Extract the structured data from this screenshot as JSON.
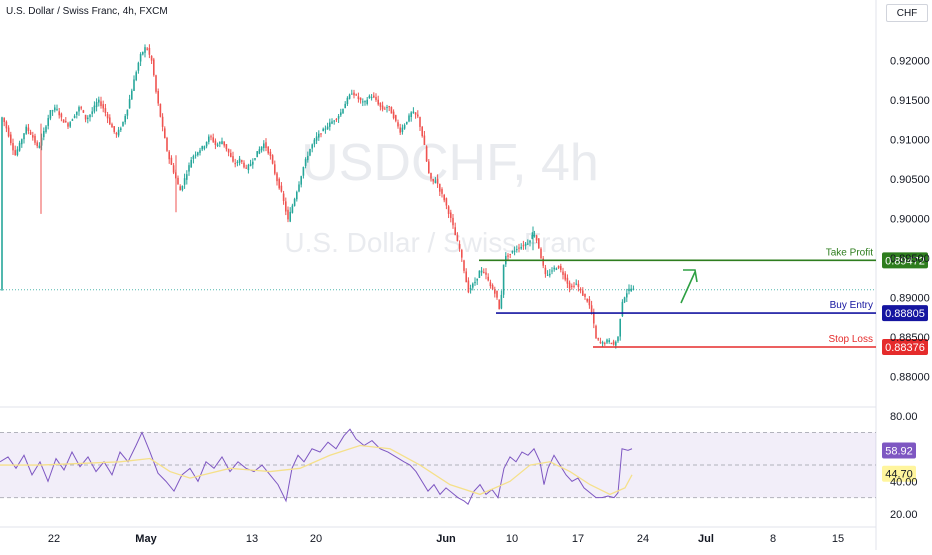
{
  "header": {
    "symbol_title": "U.S. Dollar / Swiss Franc, 4h, FXCM",
    "currency_button": "CHF"
  },
  "watermark": {
    "ticker": "USDCHF, 4h",
    "name": "U.S. Dollar / Swiss Franc"
  },
  "colors": {
    "bull": "#26a69a",
    "bear": "#ef5350",
    "take_profit": "#2e7d1e",
    "buy_entry": "#1515a0",
    "stop_loss": "#e52b2b",
    "rsi_line": "#7e57c2",
    "rsi_ma": "#f5e08a",
    "arrow": "#2ea043"
  },
  "chart_data": [
    {
      "type": "candlestick",
      "title": "U.S. Dollar / Swiss Franc, 4h, FXCM",
      "x_ticks": [
        "22",
        "May",
        "13",
        "20",
        "Jun",
        "10",
        "17",
        "24",
        "Jul",
        "8",
        "15"
      ],
      "y_ticks": [
        "0.92000",
        "0.91500",
        "0.91000",
        "0.90500",
        "0.90000",
        "0.89500",
        "0.89000",
        "0.88500",
        "0.88000"
      ],
      "ylim": [
        0.8763,
        0.9246
      ],
      "price_path": [
        [
          0,
          0.9133
        ],
        [
          5,
          0.912
        ],
        [
          10,
          0.91
        ],
        [
          15,
          0.908
        ],
        [
          20,
          0.9095
        ],
        [
          26,
          0.9115
        ],
        [
          32,
          0.9105
        ],
        [
          38,
          0.9088
        ],
        [
          44,
          0.911
        ],
        [
          50,
          0.9135
        ],
        [
          56,
          0.914
        ],
        [
          62,
          0.9125
        ],
        [
          68,
          0.9118
        ],
        [
          74,
          0.913
        ],
        [
          80,
          0.9142
        ],
        [
          86,
          0.9125
        ],
        [
          92,
          0.9135
        ],
        [
          98,
          0.915
        ],
        [
          104,
          0.9138
        ],
        [
          110,
          0.912
        ],
        [
          116,
          0.9105
        ],
        [
          122,
          0.9118
        ],
        [
          128,
          0.9142
        ],
        [
          134,
          0.9175
        ],
        [
          140,
          0.9205
        ],
        [
          146,
          0.9218
        ],
        [
          152,
          0.9198
        ],
        [
          156,
          0.916
        ],
        [
          162,
          0.9118
        ],
        [
          168,
          0.908
        ],
        [
          174,
          0.9058
        ],
        [
          180,
          0.9035
        ],
        [
          186,
          0.9055
        ],
        [
          192,
          0.9078
        ],
        [
          198,
          0.9085
        ],
        [
          204,
          0.9092
        ],
        [
          210,
          0.9105
        ],
        [
          216,
          0.9092
        ],
        [
          222,
          0.9098
        ],
        [
          228,
          0.9085
        ],
        [
          234,
          0.9068
        ],
        [
          240,
          0.9075
        ],
        [
          246,
          0.9062
        ],
        [
          252,
          0.9072
        ],
        [
          258,
          0.9085
        ],
        [
          264,
          0.9095
        ],
        [
          270,
          0.908
        ],
        [
          276,
          0.9052
        ],
        [
          282,
          0.903
        ],
        [
          288,
          0.8998
        ],
        [
          292,
          0.9015
        ],
        [
          298,
          0.904
        ],
        [
          304,
          0.9068
        ],
        [
          310,
          0.9088
        ],
        [
          316,
          0.9102
        ],
        [
          322,
          0.911
        ],
        [
          328,
          0.9118
        ],
        [
          334,
          0.9125
        ],
        [
          340,
          0.9132
        ],
        [
          346,
          0.9148
        ],
        [
          352,
          0.916
        ],
        [
          358,
          0.9152
        ],
        [
          364,
          0.9145
        ],
        [
          370,
          0.9156
        ],
        [
          376,
          0.915
        ],
        [
          382,
          0.9138
        ],
        [
          388,
          0.9142
        ],
        [
          394,
          0.9128
        ],
        [
          400,
          0.911
        ],
        [
          406,
          0.9122
        ],
        [
          412,
          0.9135
        ],
        [
          418,
          0.9128
        ],
        [
          424,
          0.9095
        ],
        [
          428,
          0.906
        ],
        [
          432,
          0.9045
        ],
        [
          436,
          0.905
        ],
        [
          440,
          0.9035
        ],
        [
          444,
          0.9025
        ],
        [
          448,
          0.901
        ],
        [
          452,
          0.8995
        ],
        [
          456,
          0.8975
        ],
        [
          460,
          0.896
        ],
        [
          464,
          0.8935
        ],
        [
          468,
          0.8908
        ],
        [
          472,
          0.8915
        ],
        [
          476,
          0.8922
        ],
        [
          480,
          0.8935
        ],
        [
          486,
          0.8928
        ],
        [
          490,
          0.8915
        ],
        [
          496,
          0.8905
        ],
        [
          500,
          0.888
        ],
        [
          504,
          0.895
        ],
        [
          510,
          0.8955
        ],
        [
          516,
          0.8962
        ],
        [
          522,
          0.8965
        ],
        [
          528,
          0.897
        ],
        [
          534,
          0.8982
        ],
        [
          538,
          0.8968
        ],
        [
          542,
          0.8945
        ],
        [
          546,
          0.8925
        ],
        [
          552,
          0.8935
        ],
        [
          558,
          0.894
        ],
        [
          564,
          0.8928
        ],
        [
          570,
          0.8912
        ],
        [
          576,
          0.8918
        ],
        [
          582,
          0.8905
        ],
        [
          588,
          0.8895
        ],
        [
          592,
          0.888
        ],
        [
          596,
          0.8848
        ],
        [
          602,
          0.8842
        ],
        [
          608,
          0.8846
        ],
        [
          614,
          0.884
        ],
        [
          618,
          0.885
        ],
        [
          622,
          0.8895
        ],
        [
          626,
          0.8905
        ],
        [
          630,
          0.8912
        ],
        [
          634,
          0.891
        ]
      ],
      "levels": [
        {
          "name": "Take Profit",
          "value": 0.89472,
          "label": "0.89472",
          "x_start": 479,
          "x_end": 876
        },
        {
          "name": "Buy Entry",
          "value": 0.88805,
          "label": "0.88805",
          "x_start": 496,
          "x_end": 876
        },
        {
          "name": "Stop Loss",
          "value": 0.88376,
          "label": "0.88376",
          "x_start": 593,
          "x_end": 876
        }
      ],
      "last_price_line": 0.891
    },
    {
      "type": "line",
      "indicator": "RSI",
      "y_ticks": [
        "80.00",
        "40.00",
        "20.00"
      ],
      "ylim": [
        12,
        85
      ],
      "band_upper": 70,
      "band_mid": 50,
      "band_lower": 30,
      "rsi_value": "58.92",
      "rsi_ma_value": "44.70",
      "rsi_series": [
        [
          0,
          52
        ],
        [
          8,
          55
        ],
        [
          16,
          48
        ],
        [
          24,
          56
        ],
        [
          32,
          44
        ],
        [
          40,
          52
        ],
        [
          48,
          40
        ],
        [
          56,
          54
        ],
        [
          64,
          47
        ],
        [
          72,
          58
        ],
        [
          80,
          49
        ],
        [
          88,
          55
        ],
        [
          96,
          46
        ],
        [
          104,
          52
        ],
        [
          112,
          44
        ],
        [
          120,
          58
        ],
        [
          128,
          52
        ],
        [
          136,
          62
        ],
        [
          142,
          70
        ],
        [
          150,
          58
        ],
        [
          158,
          45
        ],
        [
          166,
          40
        ],
        [
          174,
          34
        ],
        [
          182,
          44
        ],
        [
          190,
          48
        ],
        [
          198,
          40
        ],
        [
          206,
          52
        ],
        [
          214,
          48
        ],
        [
          222,
          55
        ],
        [
          230,
          46
        ],
        [
          238,
          52
        ],
        [
          246,
          48
        ],
        [
          254,
          46
        ],
        [
          262,
          50
        ],
        [
          270,
          44
        ],
        [
          278,
          38
        ],
        [
          286,
          28
        ],
        [
          292,
          48
        ],
        [
          298,
          56
        ],
        [
          304,
          52
        ],
        [
          312,
          60
        ],
        [
          320,
          58
        ],
        [
          328,
          64
        ],
        [
          336,
          60
        ],
        [
          344,
          68
        ],
        [
          350,
          72
        ],
        [
          356,
          66
        ],
        [
          364,
          62
        ],
        [
          372,
          65
        ],
        [
          380,
          60
        ],
        [
          388,
          58
        ],
        [
          396,
          55
        ],
        [
          404,
          52
        ],
        [
          410,
          50
        ],
        [
          416,
          46
        ],
        [
          422,
          40
        ],
        [
          428,
          34
        ],
        [
          434,
          38
        ],
        [
          440,
          32
        ],
        [
          446,
          36
        ],
        [
          452,
          33
        ],
        [
          458,
          30
        ],
        [
          464,
          28
        ],
        [
          468,
          26
        ],
        [
          474,
          34
        ],
        [
          480,
          38
        ],
        [
          486,
          32
        ],
        [
          492,
          35
        ],
        [
          498,
          30
        ],
        [
          504,
          48
        ],
        [
          510,
          55
        ],
        [
          516,
          52
        ],
        [
          522,
          58
        ],
        [
          528,
          56
        ],
        [
          534,
          60
        ],
        [
          540,
          52
        ],
        [
          544,
          38
        ],
        [
          548,
          48
        ],
        [
          554,
          56
        ],
        [
          560,
          50
        ],
        [
          566,
          44
        ],
        [
          572,
          40
        ],
        [
          578,
          42
        ],
        [
          584,
          36
        ],
        [
          590,
          33
        ],
        [
          596,
          30
        ],
        [
          602,
          30
        ],
        [
          608,
          31
        ],
        [
          614,
          30
        ],
        [
          618,
          33
        ],
        [
          622,
          60
        ],
        [
          628,
          59
        ],
        [
          632,
          60
        ]
      ],
      "rsi_ma_series": [
        [
          0,
          50
        ],
        [
          40,
          50
        ],
        [
          80,
          51
        ],
        [
          120,
          52
        ],
        [
          150,
          54
        ],
        [
          170,
          46
        ],
        [
          190,
          42
        ],
        [
          230,
          48
        ],
        [
          270,
          46
        ],
        [
          300,
          48
        ],
        [
          330,
          56
        ],
        [
          360,
          62
        ],
        [
          390,
          60
        ],
        [
          420,
          50
        ],
        [
          450,
          38
        ],
        [
          480,
          32
        ],
        [
          510,
          40
        ],
        [
          530,
          50
        ],
        [
          550,
          52
        ],
        [
          570,
          46
        ],
        [
          590,
          38
        ],
        [
          610,
          32
        ],
        [
          625,
          36
        ],
        [
          632,
          44
        ]
      ],
      "x_tick_positions_note": "tick labels at the bottom axis"
    }
  ]
}
